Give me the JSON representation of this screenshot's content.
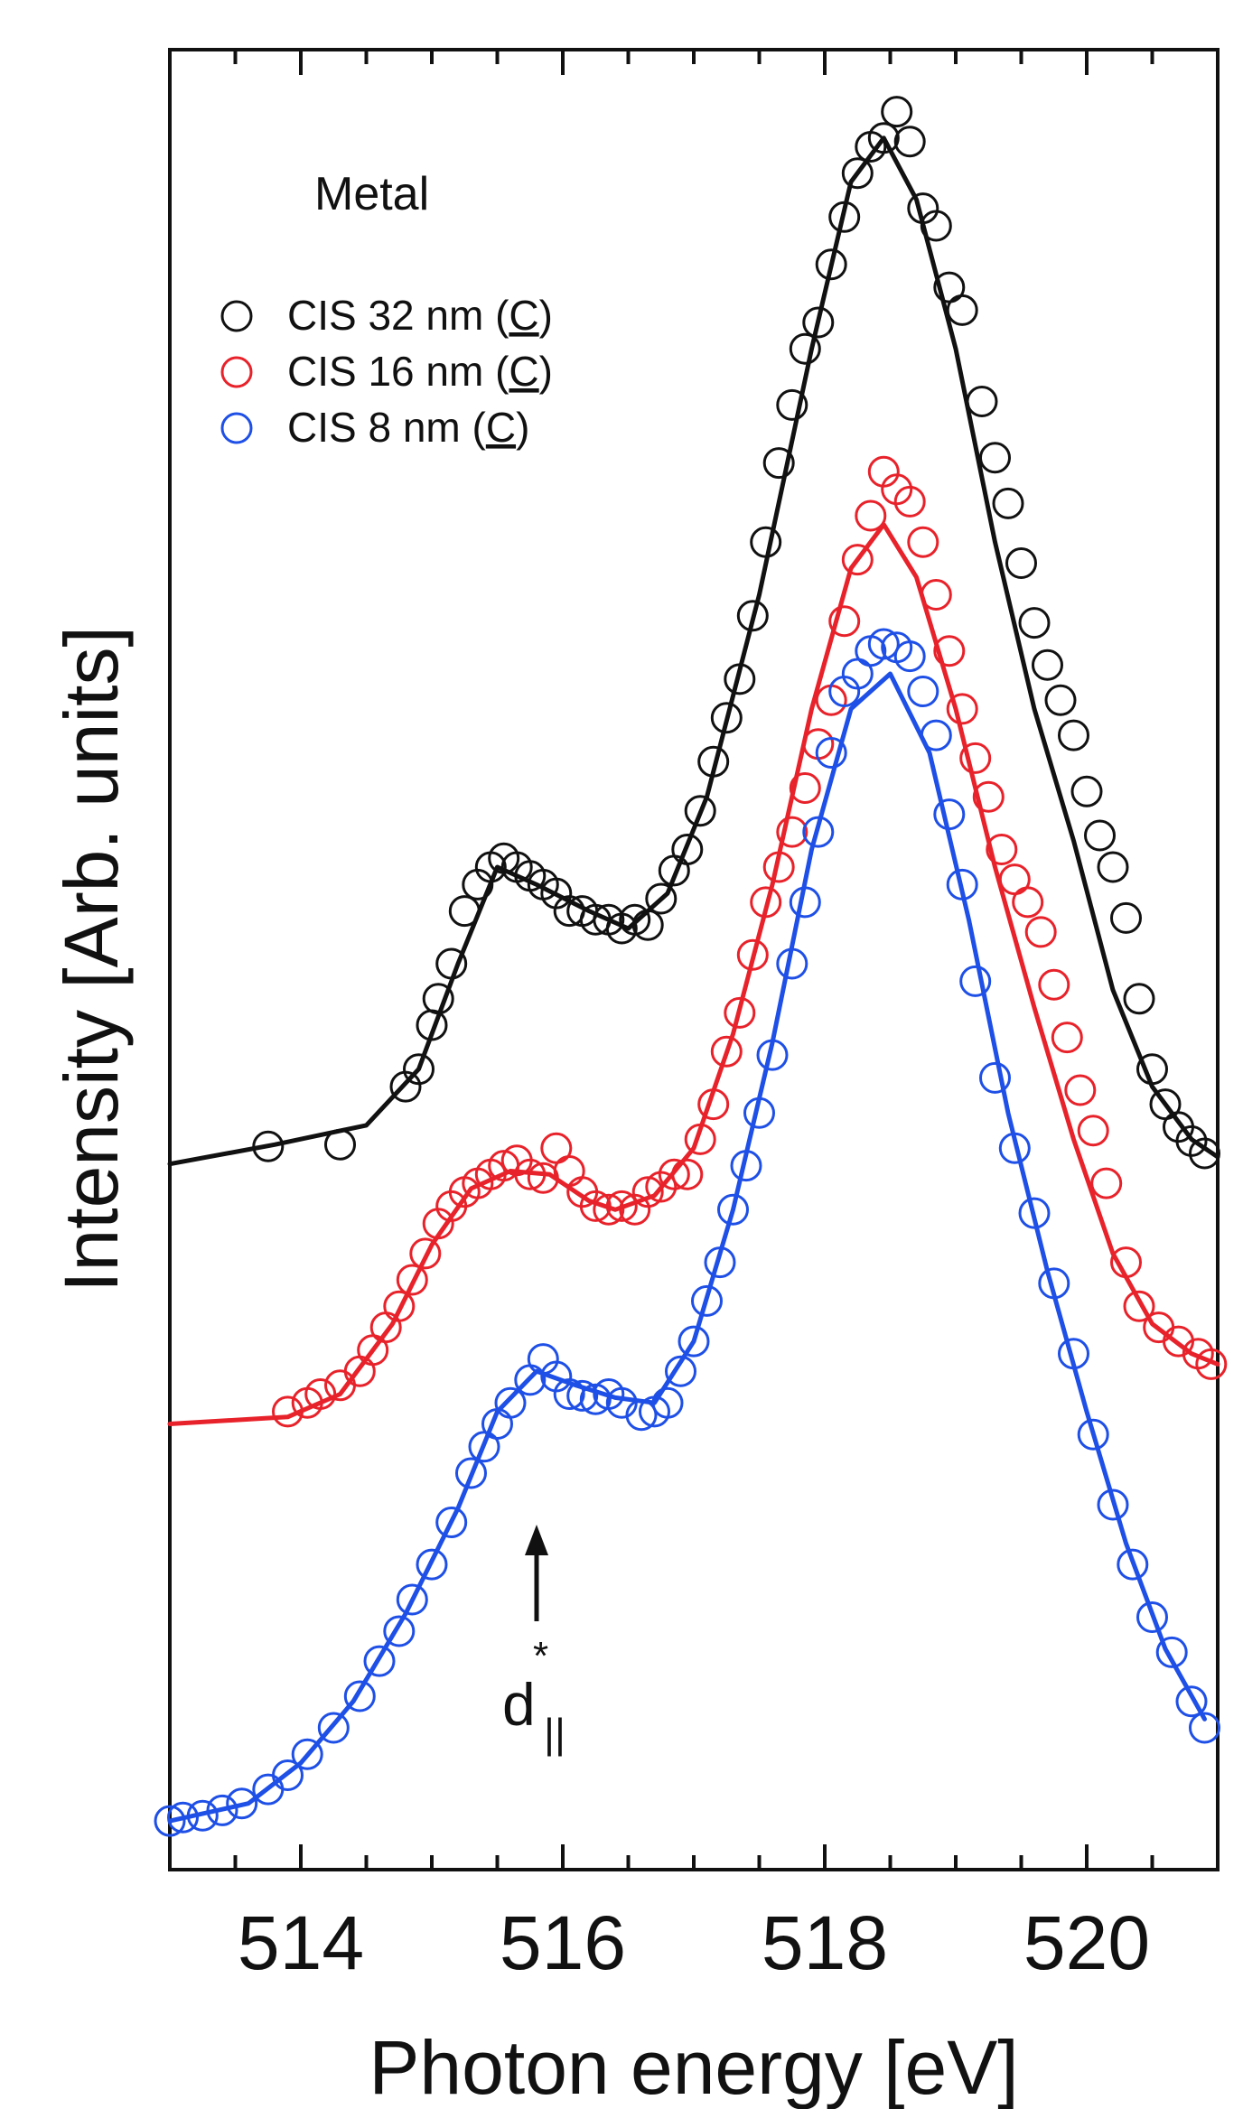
{
  "chart_data": {
    "type": "scatter",
    "title": "",
    "xlabel": "Photon energy [eV]",
    "ylabel": "Intensity [Arb. units]",
    "xlim": [
      513.0,
      521.0
    ],
    "ylim": [
      0.0,
      1.0
    ],
    "xticks": [
      "514",
      "516",
      "518",
      "520"
    ],
    "yticks": [],
    "grid": false,
    "legend_position": "top-left",
    "annotations": {
      "panel_label": "Metal",
      "arrow_label": "d",
      "arrow_label_superscript": "*",
      "arrow_label_subscript": "||",
      "arrow_x": 515.8
    },
    "series": [
      {
        "name": "CIS 32 nm",
        "legend_suffix": "C",
        "color": "#111111",
        "points": [
          [
            513.75,
            0.386
          ],
          [
            514.3,
            0.387
          ],
          [
            514.8,
            0.42
          ],
          [
            514.9,
            0.43
          ],
          [
            515.0,
            0.455
          ],
          [
            515.05,
            0.47
          ],
          [
            515.15,
            0.49
          ],
          [
            515.25,
            0.52
          ],
          [
            515.35,
            0.535
          ],
          [
            515.45,
            0.545
          ],
          [
            515.55,
            0.55
          ],
          [
            515.65,
            0.545
          ],
          [
            515.75,
            0.54
          ],
          [
            515.85,
            0.535
          ],
          [
            515.95,
            0.53
          ],
          [
            516.05,
            0.52
          ],
          [
            516.15,
            0.52
          ],
          [
            516.25,
            0.515
          ],
          [
            516.35,
            0.515
          ],
          [
            516.45,
            0.51
          ],
          [
            516.55,
            0.515
          ],
          [
            516.65,
            0.512
          ],
          [
            516.75,
            0.527
          ],
          [
            516.85,
            0.543
          ],
          [
            516.95,
            0.555
          ],
          [
            517.05,
            0.577
          ],
          [
            517.15,
            0.605
          ],
          [
            517.25,
            0.63
          ],
          [
            517.35,
            0.652
          ],
          [
            517.45,
            0.688
          ],
          [
            517.55,
            0.73
          ],
          [
            517.65,
            0.775
          ],
          [
            517.75,
            0.808
          ],
          [
            517.85,
            0.84
          ],
          [
            517.95,
            0.855
          ],
          [
            518.05,
            0.888
          ],
          [
            518.15,
            0.915
          ],
          [
            518.25,
            0.94
          ],
          [
            518.35,
            0.955
          ],
          [
            518.45,
            0.96
          ],
          [
            518.55,
            0.975
          ],
          [
            518.65,
            0.958
          ],
          [
            518.75,
            0.92
          ],
          [
            518.85,
            0.91
          ],
          [
            518.95,
            0.875
          ],
          [
            519.05,
            0.862
          ],
          [
            519.2,
            0.81
          ],
          [
            519.3,
            0.778
          ],
          [
            519.4,
            0.752
          ],
          [
            519.5,
            0.718
          ],
          [
            519.6,
            0.684
          ],
          [
            519.7,
            0.66
          ],
          [
            519.8,
            0.64
          ],
          [
            519.9,
            0.62
          ],
          [
            520.0,
            0.588
          ],
          [
            520.1,
            0.563
          ],
          [
            520.2,
            0.545
          ],
          [
            520.3,
            0.516
          ],
          [
            520.4,
            0.47
          ],
          [
            520.5,
            0.43
          ],
          [
            520.6,
            0.41
          ],
          [
            520.7,
            0.397
          ],
          [
            520.8,
            0.389
          ],
          [
            520.9,
            0.382
          ]
        ],
        "fit": [
          [
            513.0,
            0.376
          ],
          [
            513.8,
            0.387
          ],
          [
            514.5,
            0.398
          ],
          [
            514.9,
            0.43
          ],
          [
            515.2,
            0.49
          ],
          [
            515.5,
            0.545
          ],
          [
            515.8,
            0.535
          ],
          [
            516.2,
            0.52
          ],
          [
            516.5,
            0.51
          ],
          [
            516.8,
            0.53
          ],
          [
            517.1,
            0.585
          ],
          [
            517.5,
            0.7
          ],
          [
            517.9,
            0.84
          ],
          [
            518.2,
            0.935
          ],
          [
            518.45,
            0.96
          ],
          [
            518.7,
            0.925
          ],
          [
            519.0,
            0.84
          ],
          [
            519.3,
            0.73
          ],
          [
            519.6,
            0.635
          ],
          [
            519.9,
            0.56
          ],
          [
            520.2,
            0.475
          ],
          [
            520.5,
            0.42
          ],
          [
            520.8,
            0.39
          ],
          [
            521.0,
            0.38
          ]
        ]
      },
      {
        "name": "CIS 16 nm",
        "legend_suffix": "C",
        "color": "#e8222a",
        "points": [
          [
            513.9,
            0.235
          ],
          [
            514.05,
            0.24
          ],
          [
            514.15,
            0.245
          ],
          [
            514.3,
            0.25
          ],
          [
            514.45,
            0.258
          ],
          [
            514.55,
            0.27
          ],
          [
            514.65,
            0.283
          ],
          [
            514.75,
            0.295
          ],
          [
            514.85,
            0.31
          ],
          [
            514.95,
            0.325
          ],
          [
            515.05,
            0.342
          ],
          [
            515.15,
            0.352
          ],
          [
            515.25,
            0.36
          ],
          [
            515.35,
            0.365
          ],
          [
            515.45,
            0.37
          ],
          [
            515.55,
            0.375
          ],
          [
            515.65,
            0.378
          ],
          [
            515.75,
            0.37
          ],
          [
            515.85,
            0.368
          ],
          [
            515.95,
            0.385
          ],
          [
            516.05,
            0.372
          ],
          [
            516.15,
            0.36
          ],
          [
            516.25,
            0.352
          ],
          [
            516.35,
            0.35
          ],
          [
            516.45,
            0.352
          ],
          [
            516.55,
            0.35
          ],
          [
            516.65,
            0.36
          ],
          [
            516.75,
            0.363
          ],
          [
            516.85,
            0.37
          ],
          [
            516.95,
            0.37
          ],
          [
            517.05,
            0.39
          ],
          [
            517.15,
            0.41
          ],
          [
            517.25,
            0.44
          ],
          [
            517.35,
            0.462
          ],
          [
            517.45,
            0.495
          ],
          [
            517.55,
            0.525
          ],
          [
            517.65,
            0.545
          ],
          [
            517.75,
            0.565
          ],
          [
            517.85,
            0.59
          ],
          [
            517.95,
            0.615
          ],
          [
            518.05,
            0.64
          ],
          [
            518.15,
            0.685
          ],
          [
            518.25,
            0.72
          ],
          [
            518.35,
            0.745
          ],
          [
            518.45,
            0.77
          ],
          [
            518.55,
            0.76
          ],
          [
            518.65,
            0.753
          ],
          [
            518.75,
            0.73
          ],
          [
            518.85,
            0.7
          ],
          [
            518.95,
            0.668
          ],
          [
            519.05,
            0.635
          ],
          [
            519.15,
            0.607
          ],
          [
            519.25,
            0.585
          ],
          [
            519.35,
            0.555
          ],
          [
            519.45,
            0.538
          ],
          [
            519.55,
            0.525
          ],
          [
            519.65,
            0.508
          ],
          [
            519.75,
            0.478
          ],
          [
            519.85,
            0.448
          ],
          [
            519.95,
            0.418
          ],
          [
            520.05,
            0.395
          ],
          [
            520.15,
            0.365
          ],
          [
            520.3,
            0.32
          ],
          [
            520.4,
            0.295
          ],
          [
            520.55,
            0.283
          ],
          [
            520.7,
            0.275
          ],
          [
            520.85,
            0.268
          ],
          [
            520.95,
            0.262
          ]
        ],
        "fit": [
          [
            513.0,
            0.228
          ],
          [
            513.9,
            0.232
          ],
          [
            514.3,
            0.245
          ],
          [
            514.7,
            0.285
          ],
          [
            515.0,
            0.33
          ],
          [
            515.3,
            0.362
          ],
          [
            515.6,
            0.372
          ],
          [
            515.9,
            0.37
          ],
          [
            516.2,
            0.355
          ],
          [
            516.4,
            0.35
          ],
          [
            516.7,
            0.358
          ],
          [
            517.0,
            0.385
          ],
          [
            517.3,
            0.45
          ],
          [
            517.6,
            0.535
          ],
          [
            517.9,
            0.635
          ],
          [
            518.2,
            0.715
          ],
          [
            518.45,
            0.74
          ],
          [
            518.7,
            0.71
          ],
          [
            519.0,
            0.635
          ],
          [
            519.3,
            0.545
          ],
          [
            519.6,
            0.465
          ],
          [
            519.9,
            0.39
          ],
          [
            520.2,
            0.325
          ],
          [
            520.5,
            0.285
          ],
          [
            520.8,
            0.268
          ],
          [
            521.0,
            0.262
          ]
        ]
      },
      {
        "name": "CIS 8 nm",
        "legend_suffix": "C",
        "color": "#1e4fe6",
        "points": [
          [
            513.0,
            0.002
          ],
          [
            513.1,
            0.004
          ],
          [
            513.25,
            0.005
          ],
          [
            513.4,
            0.008
          ],
          [
            513.55,
            0.012
          ],
          [
            513.75,
            0.02
          ],
          [
            513.9,
            0.028
          ],
          [
            514.05,
            0.04
          ],
          [
            514.25,
            0.055
          ],
          [
            514.45,
            0.073
          ],
          [
            514.6,
            0.093
          ],
          [
            514.75,
            0.11
          ],
          [
            514.85,
            0.128
          ],
          [
            515.0,
            0.148
          ],
          [
            515.15,
            0.172
          ],
          [
            515.3,
            0.2
          ],
          [
            515.4,
            0.215
          ],
          [
            515.5,
            0.228
          ],
          [
            515.6,
            0.24
          ],
          [
            515.75,
            0.253
          ],
          [
            515.85,
            0.265
          ],
          [
            515.95,
            0.255
          ],
          [
            516.05,
            0.245
          ],
          [
            516.15,
            0.244
          ],
          [
            516.25,
            0.242
          ],
          [
            516.35,
            0.245
          ],
          [
            516.45,
            0.24
          ],
          [
            516.6,
            0.233
          ],
          [
            516.7,
            0.235
          ],
          [
            516.8,
            0.24
          ],
          [
            516.9,
            0.258
          ],
          [
            517.0,
            0.275
          ],
          [
            517.1,
            0.298
          ],
          [
            517.2,
            0.32
          ],
          [
            517.3,
            0.35
          ],
          [
            517.4,
            0.375
          ],
          [
            517.5,
            0.405
          ],
          [
            517.6,
            0.438
          ],
          [
            517.75,
            0.49
          ],
          [
            517.85,
            0.525
          ],
          [
            517.95,
            0.565
          ],
          [
            518.05,
            0.61
          ],
          [
            518.15,
            0.645
          ],
          [
            518.25,
            0.655
          ],
          [
            518.35,
            0.668
          ],
          [
            518.45,
            0.672
          ],
          [
            518.55,
            0.67
          ],
          [
            518.65,
            0.665
          ],
          [
            518.75,
            0.645
          ],
          [
            518.85,
            0.62
          ],
          [
            518.95,
            0.575
          ],
          [
            519.05,
            0.535
          ],
          [
            519.15,
            0.48
          ],
          [
            519.3,
            0.425
          ],
          [
            519.45,
            0.385
          ],
          [
            519.6,
            0.348
          ],
          [
            519.75,
            0.308
          ],
          [
            519.9,
            0.268
          ],
          [
            520.05,
            0.222
          ],
          [
            520.2,
            0.182
          ],
          [
            520.35,
            0.148
          ],
          [
            520.5,
            0.118
          ],
          [
            520.65,
            0.098
          ],
          [
            520.8,
            0.07
          ],
          [
            520.9,
            0.055
          ]
        ],
        "fit": [
          [
            513.0,
            0.002
          ],
          [
            513.6,
            0.012
          ],
          [
            514.0,
            0.035
          ],
          [
            514.4,
            0.07
          ],
          [
            514.8,
            0.12
          ],
          [
            515.2,
            0.18
          ],
          [
            515.5,
            0.235
          ],
          [
            515.8,
            0.258
          ],
          [
            516.1,
            0.25
          ],
          [
            516.4,
            0.243
          ],
          [
            516.7,
            0.24
          ],
          [
            517.0,
            0.275
          ],
          [
            517.3,
            0.35
          ],
          [
            517.6,
            0.445
          ],
          [
            517.9,
            0.555
          ],
          [
            518.2,
            0.635
          ],
          [
            518.5,
            0.655
          ],
          [
            518.8,
            0.61
          ],
          [
            519.1,
            0.515
          ],
          [
            519.4,
            0.405
          ],
          [
            519.7,
            0.315
          ],
          [
            520.0,
            0.235
          ],
          [
            520.3,
            0.16
          ],
          [
            520.6,
            0.1
          ],
          [
            520.9,
            0.06
          ]
        ]
      }
    ]
  }
}
